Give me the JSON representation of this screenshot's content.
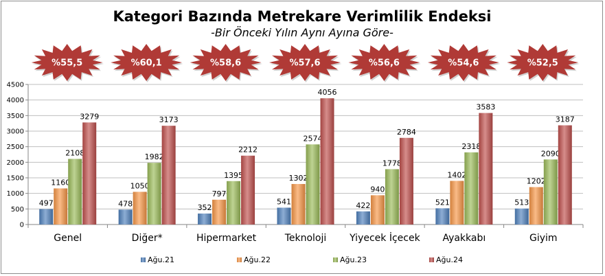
{
  "chart_data": {
    "type": "bar",
    "title": "Kategori Bazında Metrekare Verimlilik Endeksi",
    "subtitle": "-Bir Önceki Yılın Aynı Ayına Göre-",
    "categories": [
      "Genel",
      "Diğer*",
      "Hipermarket",
      "Teknoloji",
      "Yiyecek İçecek",
      "Ayakkabı",
      "Giyim"
    ],
    "series": [
      {
        "name": "Ağu.21",
        "color": "#4F81BD",
        "values": [
          497,
          478,
          352,
          541,
          422,
          521,
          513
        ]
      },
      {
        "name": "Ağu.22",
        "color": "#F79646",
        "values": [
          1160,
          1050,
          797,
          1302,
          940,
          1402,
          1202
        ]
      },
      {
        "name": "Ağu.23",
        "color": "#9BBB59",
        "values": [
          2108,
          1982,
          1395,
          2574,
          1778,
          2318,
          2090
        ]
      },
      {
        "name": "Ağu.24",
        "color": "#C0504D",
        "values": [
          3279,
          3173,
          2212,
          4056,
          2784,
          3583,
          3187
        ]
      }
    ],
    "badges": [
      "%55,5",
      "%60,1",
      "%58,6",
      "%57,6",
      "%56,6",
      "%54,6",
      "%52,5"
    ],
    "badge_color": "#B03A36",
    "ylim": [
      0,
      4500
    ],
    "yticks": [
      0,
      500,
      1000,
      1500,
      2000,
      2500,
      3000,
      3500,
      4000,
      4500
    ],
    "grid": true,
    "legend_position": "bottom"
  }
}
